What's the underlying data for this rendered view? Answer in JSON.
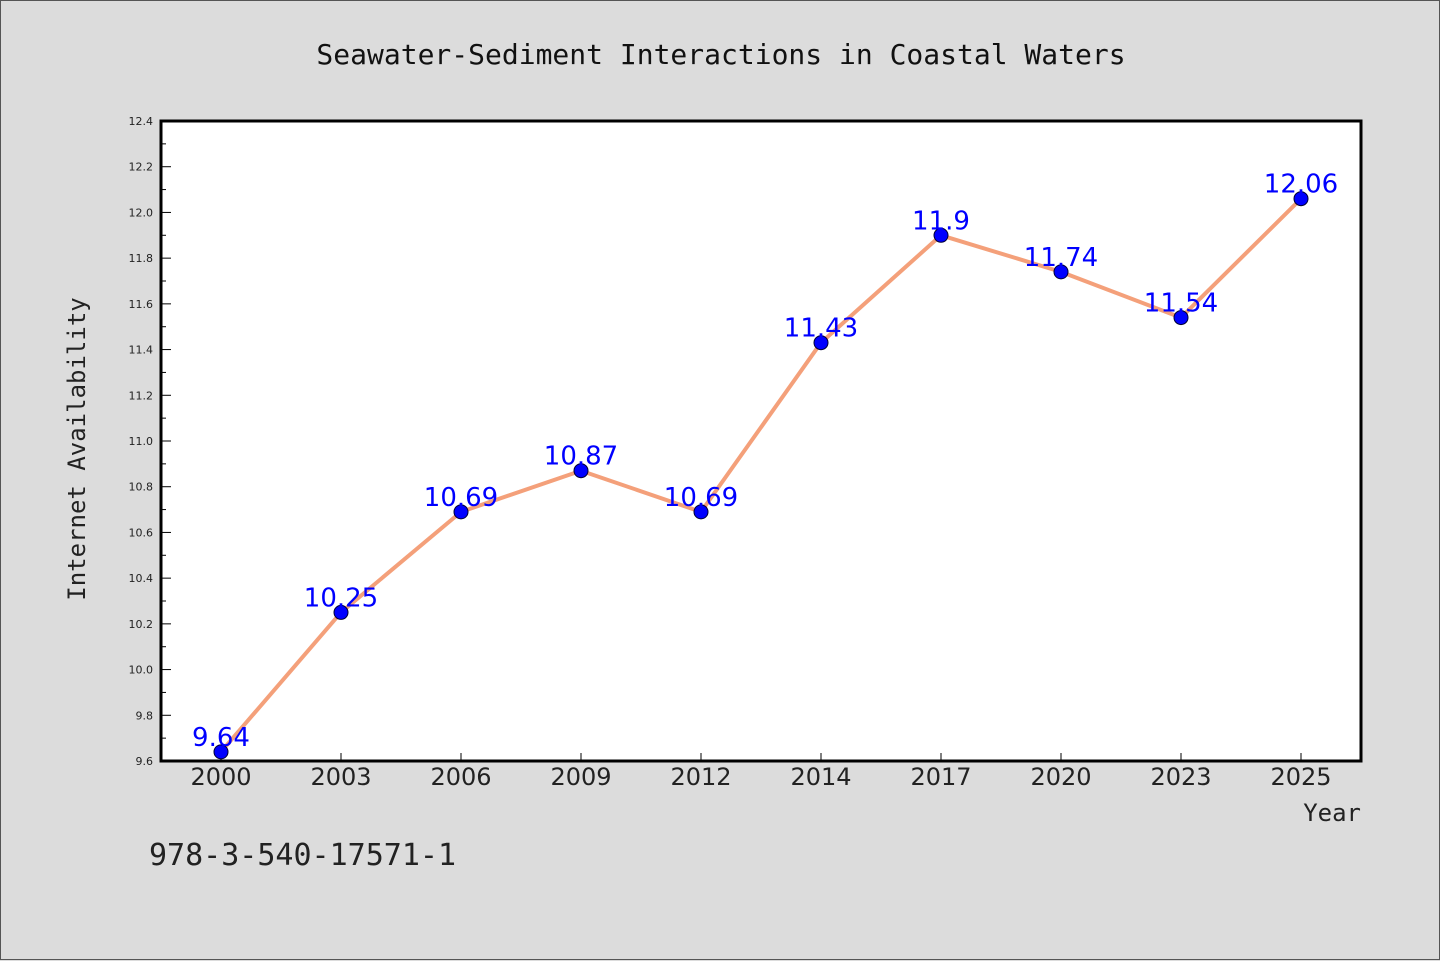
{
  "chart_data": {
    "type": "line",
    "title": "Seawater-Sediment Interactions in Coastal Waters",
    "xlabel": "Year",
    "ylabel": "Internet Availability",
    "categories": [
      "2000",
      "2003",
      "2006",
      "2009",
      "2012",
      "2014",
      "2017",
      "2020",
      "2023",
      "2025"
    ],
    "series": [
      {
        "values": [
          9.64,
          10.25,
          10.69,
          10.87,
          10.69,
          11.43,
          11.9,
          11.74,
          11.54,
          12.06
        ],
        "labels": [
          "9.64",
          "10.25",
          "10.69",
          "10.87",
          "10.69",
          "11.43",
          "11.9",
          "11.74",
          "11.54",
          "12.06"
        ],
        "line_color": "#f4a07a",
        "marker_color": "#0000ff"
      }
    ],
    "ylim": [
      9.6,
      12.4
    ],
    "yticks": [
      9.6,
      9.8,
      10.0,
      10.2,
      10.4,
      10.6,
      10.8,
      11.0,
      11.2,
      11.4,
      11.6,
      11.8,
      12.0,
      12.2,
      12.4
    ],
    "ytick_labels": [
      "9.6",
      "9.8",
      "10.0",
      "10.2",
      "10.4",
      "10.6",
      "10.8",
      "11.0",
      "11.2",
      "11.4",
      "11.6",
      "11.8",
      "12.0",
      "12.2",
      "12.4"
    ],
    "grid": false,
    "legend": "none"
  },
  "footer": {
    "isbn": "978-3-540-17571-1"
  },
  "colors": {
    "background": "#dcdcdc",
    "plot_background": "#ffffff",
    "line": "#f4a07a",
    "marker": "#0000ff",
    "data_label": "#0000ff"
  }
}
